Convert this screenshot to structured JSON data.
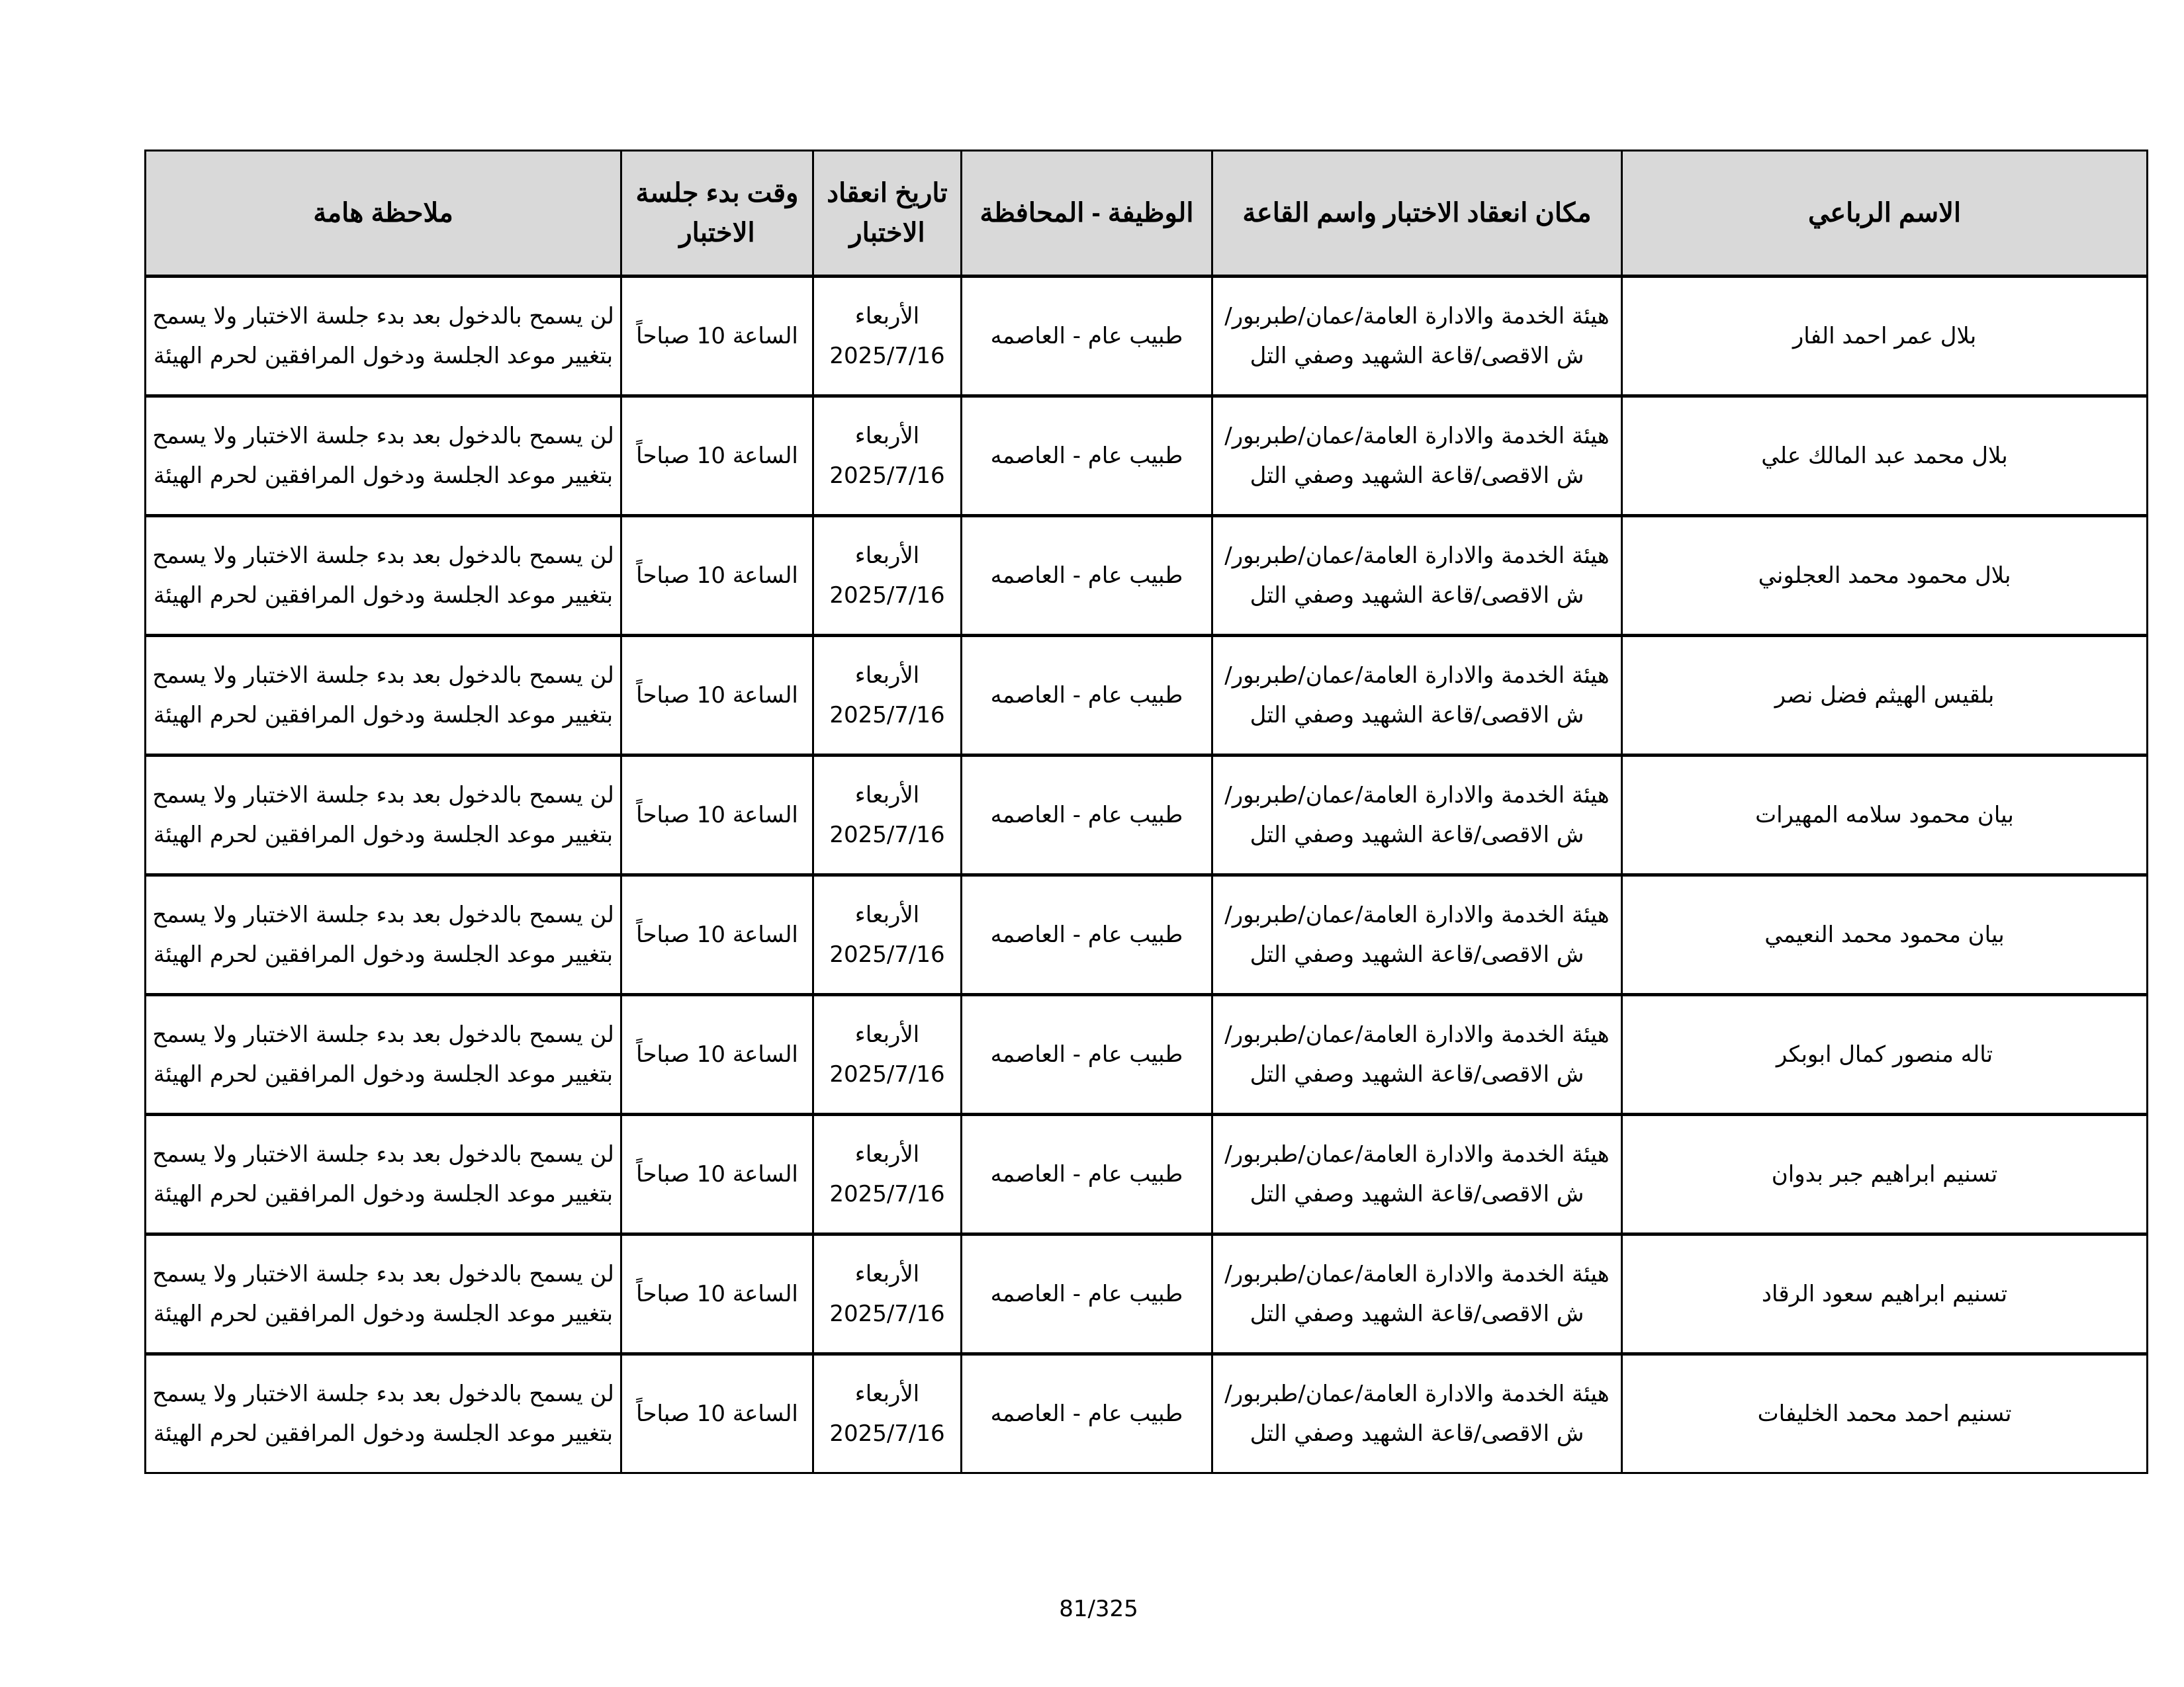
{
  "table": {
    "headers": {
      "name": "الاسم الرباعي",
      "location": "مكان انعقاد الاختبار واسم القاعة",
      "job": "الوظيفة - المحافظة",
      "date": "تاريخ انعقاد الاختبار",
      "time": "وقت بدء جلسة الاختبار",
      "note": "ملاحظة هامة"
    },
    "rows": [
      {
        "name": "بلال عمر احمد الفار",
        "location": "هيئة الخدمة والادارة العامة/عمان/طبربور/ش الاقصى/قاعة الشهيد وصفي التل",
        "job": "طبيب عام - العاصمه",
        "day": "الأربعاء",
        "date": "2025/7/16",
        "time": "الساعة 10 صباحاً",
        "note": "لن يسمح بالدخول بعد بدء جلسة الاختبار ولا يسمح بتغيير موعد الجلسة ودخول المرافقين لحرم الهيئة"
      },
      {
        "name": "بلال محمد عبد المالك علي",
        "location": "هيئة الخدمة والادارة العامة/عمان/طبربور/ش الاقصى/قاعة الشهيد وصفي التل",
        "job": "طبيب عام - العاصمه",
        "day": "الأربعاء",
        "date": "2025/7/16",
        "time": "الساعة 10 صباحاً",
        "note": "لن يسمح بالدخول بعد بدء جلسة الاختبار ولا يسمح بتغيير موعد الجلسة ودخول المرافقين لحرم الهيئة"
      },
      {
        "name": "بلال محمود محمد العجلوني",
        "location": "هيئة الخدمة والادارة العامة/عمان/طبربور/ش الاقصى/قاعة الشهيد وصفي التل",
        "job": "طبيب عام - العاصمه",
        "day": "الأربعاء",
        "date": "2025/7/16",
        "time": "الساعة 10 صباحاً",
        "note": "لن يسمح بالدخول بعد بدء جلسة الاختبار ولا يسمح بتغيير موعد الجلسة ودخول المرافقين لحرم الهيئة"
      },
      {
        "name": "بلقيس الهيثم فضل نصر",
        "location": "هيئة الخدمة والادارة العامة/عمان/طبربور/ش الاقصى/قاعة الشهيد وصفي التل",
        "job": "طبيب عام - العاصمه",
        "day": "الأربعاء",
        "date": "2025/7/16",
        "time": "الساعة 10 صباحاً",
        "note": "لن يسمح بالدخول بعد بدء جلسة الاختبار ولا يسمح بتغيير موعد الجلسة ودخول المرافقين لحرم الهيئة"
      },
      {
        "name": "بيان محمود سلامه المهيرات",
        "location": "هيئة الخدمة والادارة العامة/عمان/طبربور/ش الاقصى/قاعة الشهيد وصفي التل",
        "job": "طبيب عام - العاصمه",
        "day": "الأربعاء",
        "date": "2025/7/16",
        "time": "الساعة 10 صباحاً",
        "note": "لن يسمح بالدخول بعد بدء جلسة الاختبار ولا يسمح بتغيير موعد الجلسة ودخول المرافقين لحرم الهيئة"
      },
      {
        "name": "بيان محمود محمد النعيمي",
        "location": "هيئة الخدمة والادارة العامة/عمان/طبربور/ش الاقصى/قاعة الشهيد وصفي التل",
        "job": "طبيب عام - العاصمه",
        "day": "الأربعاء",
        "date": "2025/7/16",
        "time": "الساعة 10 صباحاً",
        "note": "لن يسمح بالدخول بعد بدء جلسة الاختبار ولا يسمح بتغيير موعد الجلسة ودخول المرافقين لحرم الهيئة"
      },
      {
        "name": "تاله منصور كمال ابوبكر",
        "location": "هيئة الخدمة والادارة العامة/عمان/طبربور/ش الاقصى/قاعة الشهيد وصفي التل",
        "job": "طبيب عام - العاصمه",
        "day": "الأربعاء",
        "date": "2025/7/16",
        "time": "الساعة 10 صباحاً",
        "note": "لن يسمح بالدخول بعد بدء جلسة الاختبار ولا يسمح بتغيير موعد الجلسة ودخول المرافقين لحرم الهيئة"
      },
      {
        "name": "تسنيم ابراهيم جبر بدوان",
        "location": "هيئة الخدمة والادارة العامة/عمان/طبربور/ش الاقصى/قاعة الشهيد وصفي التل",
        "job": "طبيب عام - العاصمه",
        "day": "الأربعاء",
        "date": "2025/7/16",
        "time": "الساعة 10 صباحاً",
        "note": "لن يسمح بالدخول بعد بدء جلسة الاختبار ولا يسمح بتغيير موعد الجلسة ودخول المرافقين لحرم الهيئة"
      },
      {
        "name": "تسنيم ابراهيم سعود الرقاد",
        "location": "هيئة الخدمة والادارة العامة/عمان/طبربور/ش الاقصى/قاعة الشهيد وصفي التل",
        "job": "طبيب عام - العاصمه",
        "day": "الأربعاء",
        "date": "2025/7/16",
        "time": "الساعة 10 صباحاً",
        "note": "لن يسمح بالدخول بعد بدء جلسة الاختبار ولا يسمح بتغيير موعد الجلسة ودخول المرافقين لحرم الهيئة"
      },
      {
        "name": "تسنيم احمد محمد الخليفات",
        "location": "هيئة الخدمة والادارة العامة/عمان/طبربور/ش الاقصى/قاعة الشهيد وصفي التل",
        "job": "طبيب عام - العاصمه",
        "day": "الأربعاء",
        "date": "2025/7/16",
        "time": "الساعة 10 صباحاً",
        "note": "لن يسمح بالدخول بعد بدء جلسة الاختبار ولا يسمح بتغيير موعد الجلسة ودخول المرافقين لحرم الهيئة"
      }
    ]
  },
  "footer": {
    "page_number": "81/325"
  }
}
